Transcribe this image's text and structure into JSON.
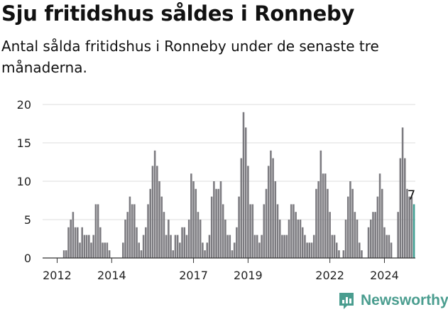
{
  "page": {
    "title": "Sju fritidshus såldes i Ronneby",
    "subtitle": "Antal sålda fritidshus i Ronneby under de senaste tre månaderna.",
    "brand": "Newsworthy"
  },
  "colors": {
    "bar": "#7c7b80",
    "highlight": "#3e9c90",
    "grid": "#dcdcdc",
    "text": "#222222",
    "brand": "#4a9d8f"
  },
  "chart_data": {
    "type": "bar",
    "title": "Sju fritidshus såldes i Ronneby",
    "subtitle": "Antal sålda fritidshus i Ronneby under de senaste tre månaderna.",
    "xlabel": "",
    "ylabel": "",
    "ylim": [
      0,
      20
    ],
    "yticks": [
      0,
      5,
      10,
      15,
      20
    ],
    "grid": "horizontal",
    "xticks": [
      {
        "label": "2012",
        "index": 6
      },
      {
        "label": "2014",
        "index": 30
      },
      {
        "label": "2017",
        "index": 66
      },
      {
        "label": "2019",
        "index": 90
      },
      {
        "label": "2022",
        "index": 126
      },
      {
        "label": "2024",
        "index": 150
      }
    ],
    "series": [
      {
        "values": [
          0,
          0,
          0,
          0,
          0,
          0,
          0,
          0,
          0,
          1,
          1,
          4,
          5,
          6,
          4,
          4,
          2,
          4,
          3,
          3,
          3,
          2,
          3,
          7,
          7,
          4,
          2,
          2,
          2,
          1,
          0,
          0,
          0,
          0,
          0,
          2,
          5,
          6,
          8,
          7,
          7,
          4,
          2,
          1,
          3,
          4,
          7,
          9,
          12,
          14,
          12,
          10,
          8,
          6,
          3,
          5,
          3,
          1,
          3,
          3,
          2,
          4,
          4,
          3,
          5,
          11,
          10,
          9,
          6,
          5,
          2,
          1,
          2,
          3,
          8,
          10,
          9,
          9,
          10,
          7,
          5,
          3,
          3,
          1,
          2,
          4,
          8,
          13,
          19,
          17,
          12,
          7,
          7,
          3,
          3,
          2,
          3,
          7,
          9,
          12,
          14,
          13,
          10,
          7,
          5,
          3,
          3,
          3,
          5,
          7,
          7,
          6,
          5,
          5,
          4,
          3,
          2,
          2,
          2,
          3,
          9,
          10,
          14,
          11,
          11,
          9,
          6,
          3,
          3,
          2,
          1,
          0,
          1,
          5,
          8,
          10,
          9,
          6,
          5,
          2,
          1,
          0,
          0,
          4,
          5,
          6,
          6,
          8,
          11,
          9,
          4,
          3,
          3,
          2,
          0,
          0,
          6,
          13,
          17,
          13,
          9,
          8,
          8,
          7
        ],
        "highlight_last": true,
        "end_label": "7"
      }
    ]
  }
}
